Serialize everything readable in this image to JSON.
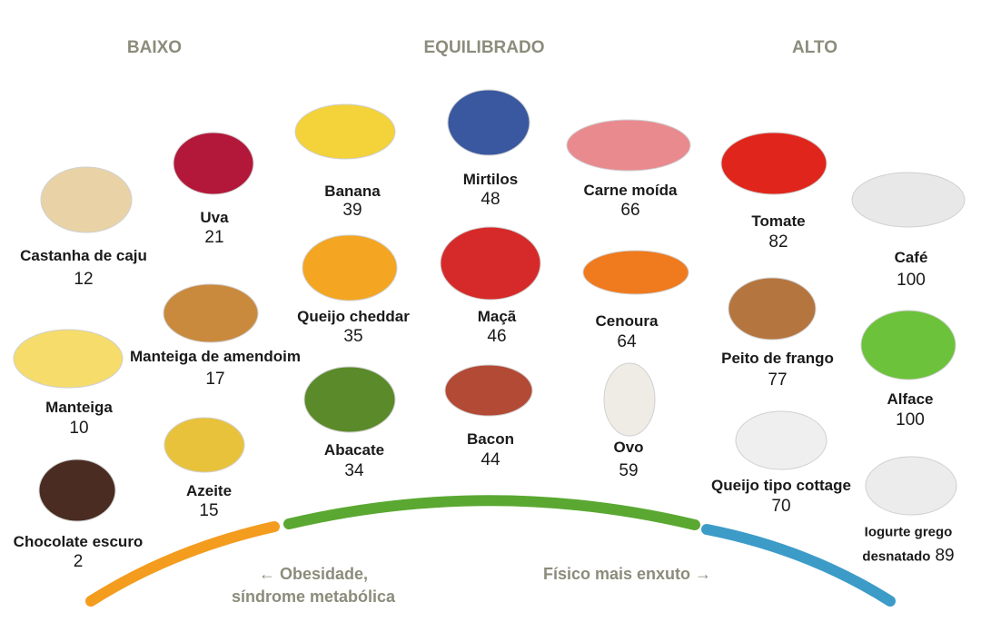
{
  "headers": [
    "BAIXO",
    "EQUILIBRADO",
    "ALTO"
  ],
  "items": [
    {
      "name": "Castanha de caju",
      "value": 12
    },
    {
      "name": "Manteiga",
      "value": 10
    },
    {
      "name": "Chocolate escuro",
      "value": 2
    },
    {
      "name": "Uva",
      "value": 21
    },
    {
      "name": "Manteiga de amendoim",
      "value": 17
    },
    {
      "name": "Azeite",
      "value": 15
    },
    {
      "name": "Banana",
      "value": 39
    },
    {
      "name": "Queijo cheddar",
      "value": 35
    },
    {
      "name": "Abacate",
      "value": 34
    },
    {
      "name": "Mirtilos",
      "value": 48
    },
    {
      "name": "Maçã",
      "value": 46
    },
    {
      "name": "Bacon",
      "value": 44
    },
    {
      "name": "Carne moída",
      "value": 66
    },
    {
      "name": "Cenoura",
      "value": 64
    },
    {
      "name": "Ovo",
      "value": 59
    },
    {
      "name": "Tomate",
      "value": 82
    },
    {
      "name": "Peito de frango",
      "value": 77
    },
    {
      "name": "Queijo tipo cottage",
      "value": 70
    },
    {
      "name": "Café",
      "value": 100
    },
    {
      "name": "Alface",
      "value": 100
    },
    {
      "name": "Iogurte grego desnatado",
      "value": 89
    }
  ],
  "captions": {
    "left": [
      "← Obesidade,",
      "síndrome metabólica"
    ],
    "right": "Físico mais enxuto →"
  }
}
